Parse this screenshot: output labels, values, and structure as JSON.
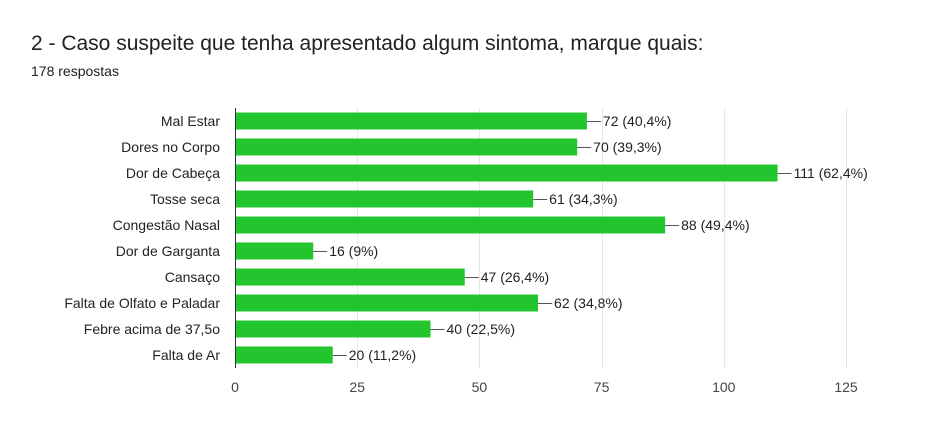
{
  "header": {
    "title": "2 - Caso suspeite que tenha apresentado algum sintoma, marque quais:",
    "responses": "178 respostas"
  },
  "colors": {
    "bar": "#23c52f",
    "grid": "#e6e6e6",
    "axis": "#333333",
    "connector": "#555555"
  },
  "chart_data": {
    "type": "bar",
    "orientation": "horizontal",
    "title": "2 - Caso suspeite que tenha apresentado algum sintoma, marque quais:",
    "subtitle": "178 respostas",
    "categories": [
      "Mal Estar",
      "Dores no Corpo",
      "Dor de Cabeça",
      "Tosse seca",
      "Congestão Nasal",
      "Dor de Garganta",
      "Cansaço",
      "Falta de Olfato e Paladar",
      "Febre acima de 37,5o",
      "Falta de Ar"
    ],
    "values": [
      72,
      70,
      111,
      61,
      88,
      16,
      47,
      62,
      40,
      20
    ],
    "data_labels": [
      "72 (40,4%)",
      "70 (39,3%)",
      "111 (62,4%)",
      "61 (34,3%)",
      "88 (49,4%)",
      "16 (9%)",
      "47 (26,4%)",
      "62 (34,8%)",
      "40 (22,5%)",
      "20 (11,2%)"
    ],
    "xlim": [
      0,
      125
    ],
    "xticks": [
      0,
      25,
      50,
      75,
      100,
      125
    ],
    "xtick_labels": [
      "0",
      "25",
      "50",
      "75",
      "100",
      "125"
    ],
    "xlabel": "",
    "ylabel": "",
    "grid": true,
    "legend": "none"
  }
}
